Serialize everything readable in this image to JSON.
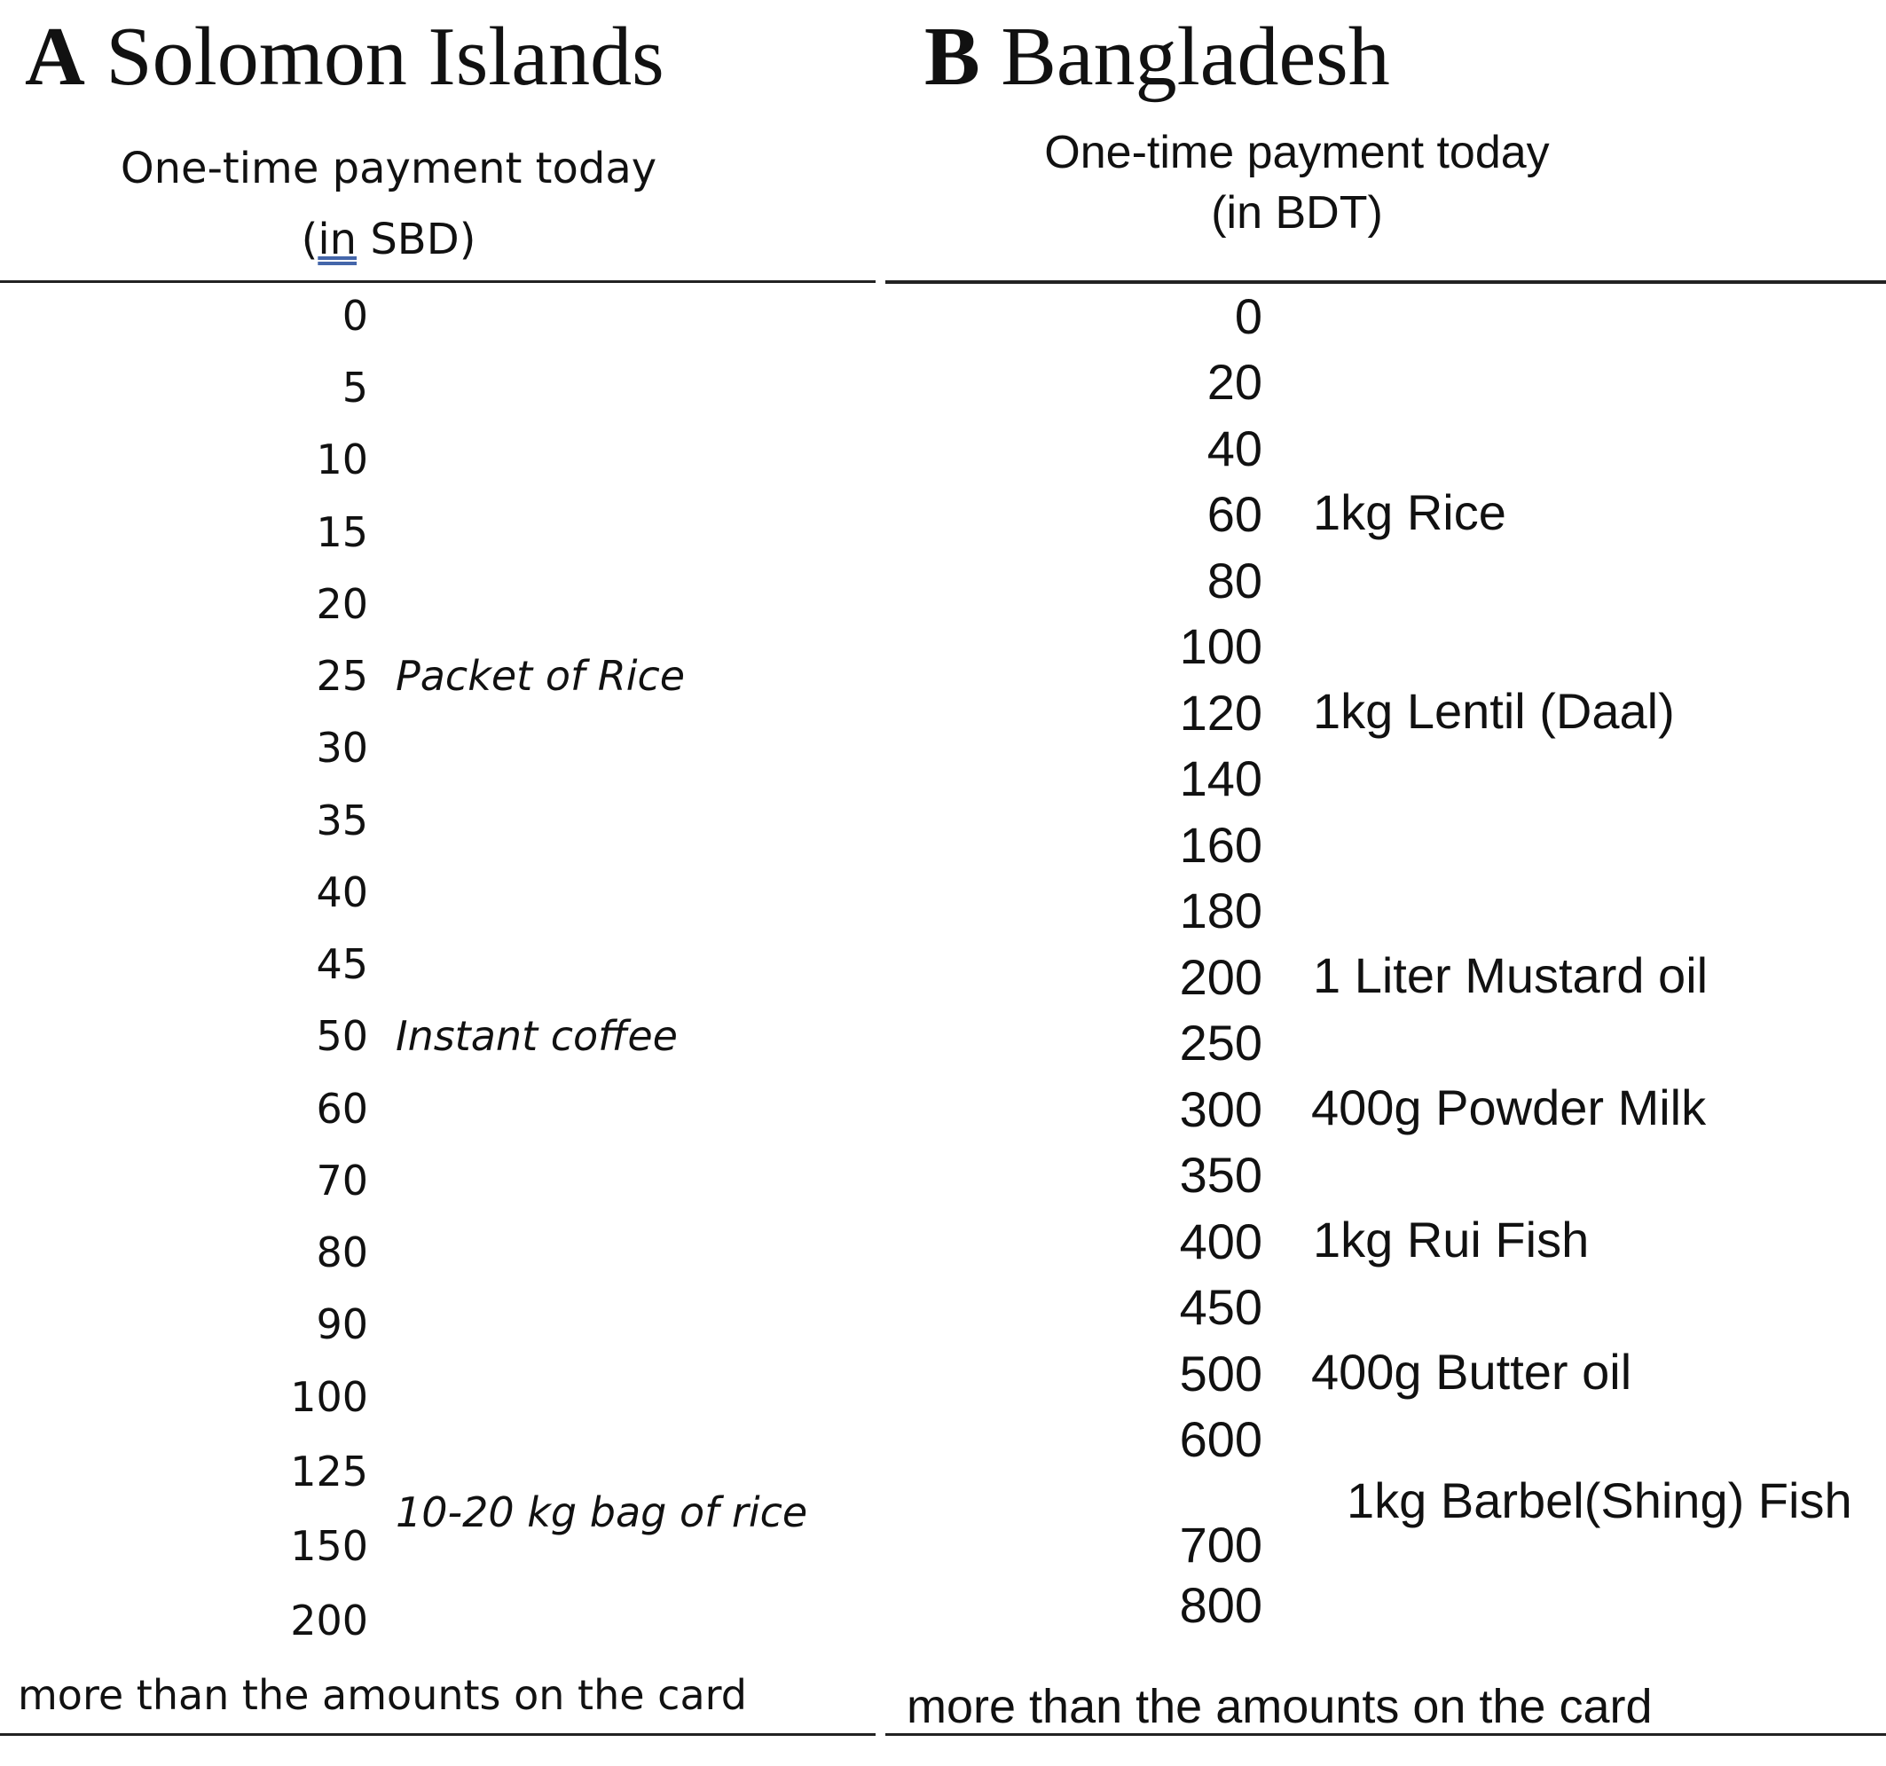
{
  "panel_a": {
    "letter": "A",
    "title": "Solomon Islands",
    "header_line1": "One-time payment today",
    "header_line2_open": "(",
    "header_line2_in": "in",
    "header_line2_rest": " SBD)",
    "amounts": [
      "0",
      "5",
      "10",
      "15",
      "20",
      "25",
      "30",
      "35",
      "40",
      "45",
      "50",
      "60",
      "70",
      "80",
      "90",
      "100",
      "125",
      "150",
      "200"
    ],
    "items": [
      "Packet of Rice",
      "Instant coffee",
      "10-20 kg bag of rice"
    ],
    "footer": "more than the amounts on the card"
  },
  "panel_b": {
    "letter": "B",
    "title": "Bangladesh",
    "header_line1": "One-time payment today",
    "header_line2": "(in BDT)",
    "amounts": [
      "0",
      "20",
      "40",
      "60",
      "80",
      "100",
      "120",
      "140",
      "160",
      "180",
      "200",
      "250",
      "300",
      "350",
      "400",
      "450",
      "500",
      "600",
      "700",
      "800"
    ],
    "items": [
      "1kg Rice",
      "1kg Lentil (Daal)",
      "1 Liter Mustard oil",
      "400g Powder Milk",
      "1kg Rui Fish",
      "400g Butter oil",
      "1kg Barbel(Shing) Fish"
    ],
    "footer": "more than the amounts on the card"
  }
}
